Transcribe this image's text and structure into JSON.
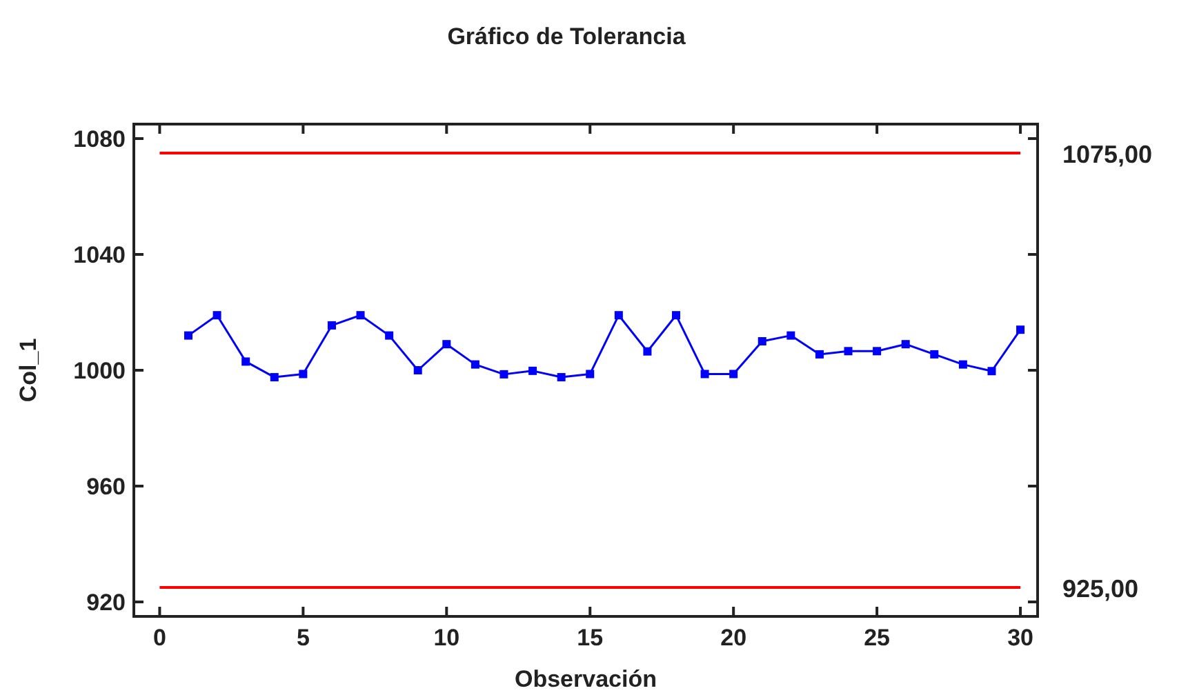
{
  "chart_data": {
    "type": "line",
    "title": "Gráfico de Tolerancia",
    "xlabel": "Observación",
    "ylabel": "Col_1",
    "x": [
      1,
      2,
      3,
      4,
      5,
      6,
      7,
      8,
      9,
      10,
      11,
      12,
      13,
      14,
      15,
      16,
      17,
      18,
      19,
      20,
      21,
      22,
      23,
      24,
      25,
      26,
      27,
      28,
      29,
      30
    ],
    "series": [
      {
        "color": "#0000ff",
        "values": [
          1012,
          1019,
          1003,
          997.6,
          998.7,
          1015.5,
          1019,
          1012,
          1000,
          1009,
          1002,
          998.6,
          999.8,
          997.6,
          998.7,
          1019,
          1006.5,
          1019,
          998.7,
          998.7,
          1010,
          1012,
          1005.5,
          1006.6,
          1006.6,
          1009,
          1005.5,
          1002,
          999.7,
          1014
        ]
      }
    ],
    "marker": "square",
    "line_style": "solid",
    "xlim": [
      -0.9,
      30.6
    ],
    "xticks": [
      0,
      5,
      10,
      15,
      20,
      25,
      30
    ],
    "ylim": [
      915,
      1085
    ],
    "yticks": [
      920,
      960,
      1000,
      1040,
      1080
    ],
    "ref_lines": [
      {
        "axis": "y",
        "value": 1075,
        "label": "1075,00",
        "color": "#ff0000"
      },
      {
        "axis": "y",
        "value": 925,
        "label": "925,00",
        "color": "#ff0000"
      }
    ],
    "grid": false
  }
}
